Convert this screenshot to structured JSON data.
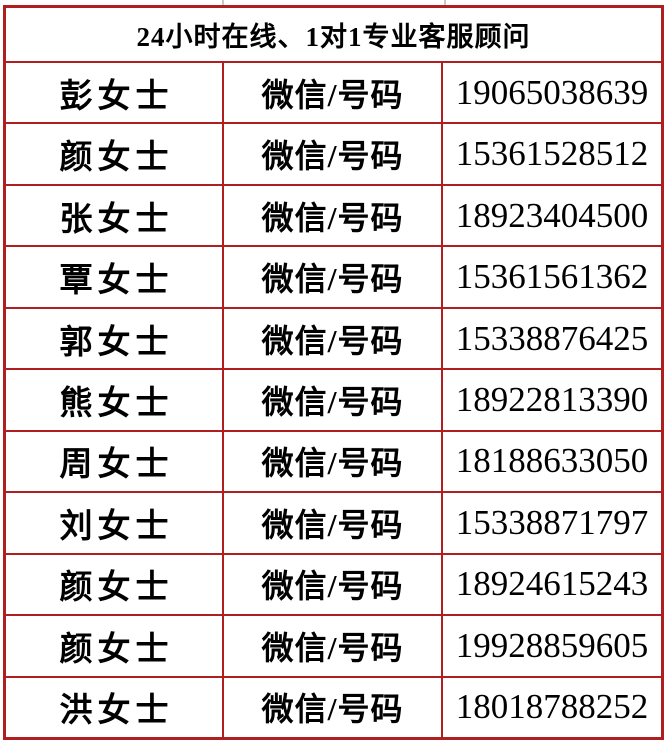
{
  "colors": {
    "table_border": "#b01f1f",
    "text": "#000000",
    "background": "#ffffff"
  },
  "header": {
    "title": "24小时在线、1对1专业客服顾问"
  },
  "contacts": {
    "rows": [
      {
        "name": "彭女士",
        "label": "微信/号码",
        "number": "19065038639"
      },
      {
        "name": "颜女士",
        "label": "微信/号码",
        "number": "15361528512"
      },
      {
        "name": "张女士",
        "label": "微信/号码",
        "number": "18923404500"
      },
      {
        "name": "覃女士",
        "label": "微信/号码",
        "number": "15361561362"
      },
      {
        "name": "郭女士",
        "label": "微信/号码",
        "number": "15338876425"
      },
      {
        "name": "熊女士",
        "label": "微信/号码",
        "number": "18922813390"
      },
      {
        "name": "周女士",
        "label": "微信/号码",
        "number": "18188633050"
      },
      {
        "name": "刘女士",
        "label": "微信/号码",
        "number": "15338871797"
      },
      {
        "name": "颜女士",
        "label": "微信/号码",
        "number": "18924615243"
      },
      {
        "name": "颜女士",
        "label": "微信/号码",
        "number": "19928859605"
      },
      {
        "name": "洪女士",
        "label": "微信/号码",
        "number": "18018788252"
      }
    ]
  }
}
